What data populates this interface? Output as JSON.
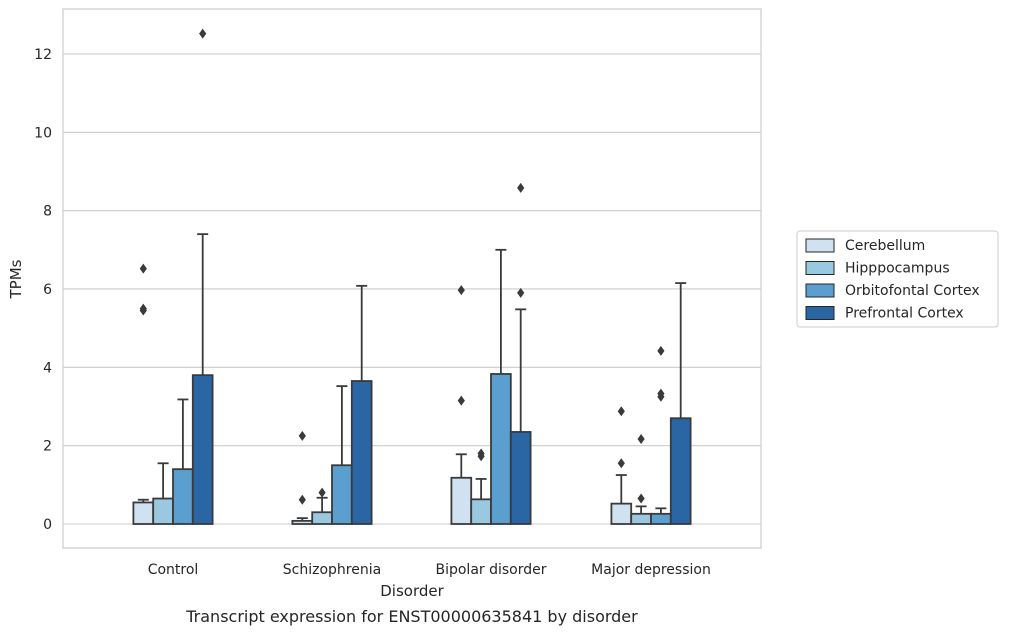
{
  "chart_data": {
    "type": "bar",
    "title": "",
    "caption": "Transcript expression for ENST00000635841 by disorder",
    "xlabel": "Disorder",
    "ylabel": "TPMs",
    "ylim": [
      -0.6,
      13.2
    ],
    "yticks": [
      0,
      2,
      4,
      6,
      8,
      10,
      12
    ],
    "grid": "horizontal",
    "legend_position": "right",
    "categories": [
      "Control",
      "Schizophrenia",
      "Bipolar disorder",
      "Major depression"
    ],
    "series": [
      {
        "name": "Cerebellum",
        "color": "#d0e1f2",
        "values": [
          0.55,
          0.08,
          1.18,
          0.52
        ],
        "whisker_high": [
          0.62,
          0.15,
          1.78,
          1.25
        ],
        "outliers": [
          [
            6.52,
            5.5,
            5.45
          ],
          [
            2.25,
            0.62
          ],
          [
            5.97,
            3.15
          ],
          [
            2.88,
            1.55
          ]
        ]
      },
      {
        "name": "Hipppocampus",
        "color": "#9ac8e0",
        "values": [
          0.65,
          0.3,
          0.63,
          0.26
        ],
        "whisker_high": [
          1.55,
          0.67,
          1.15,
          0.45
        ],
        "outliers": [
          [],
          [
            0.8
          ],
          [
            1.8,
            1.73
          ],
          [
            2.17,
            0.65
          ]
        ]
      },
      {
        "name": "Orbitofontal Cortex",
        "color": "#5a9fcf",
        "values": [
          1.4,
          1.5,
          3.83,
          0.26
        ],
        "whisker_high": [
          3.18,
          3.52,
          7.0,
          0.4
        ],
        "outliers": [
          [],
          [],
          [],
          [
            4.42,
            3.33,
            3.25
          ]
        ]
      },
      {
        "name": "Prefrontal Cortex",
        "color": "#2a66a3",
        "values": [
          3.8,
          3.65,
          2.35,
          2.7
        ],
        "whisker_high": [
          7.4,
          6.08,
          5.48,
          6.15
        ],
        "outliers": [
          [
            12.52
          ],
          [],
          [
            8.58,
            5.9
          ],
          []
        ]
      }
    ]
  }
}
